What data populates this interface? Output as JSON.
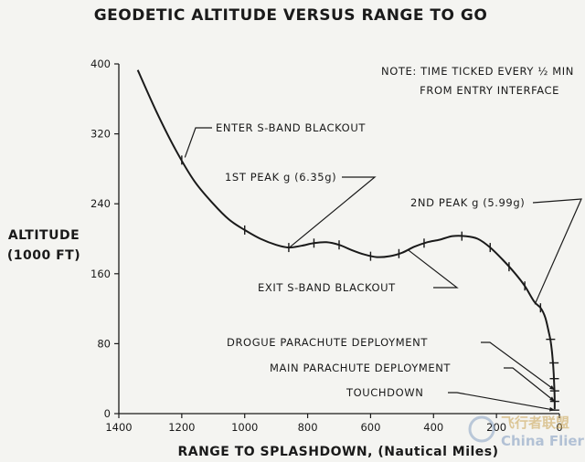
{
  "chart_data": {
    "type": "line",
    "title": "GEODETIC ALTITUDE VERSUS RANGE TO GO",
    "xlabel": "RANGE TO SPLASHDOWN, (Nautical Miles)",
    "ylabel_line1": "ALTITUDE",
    "ylabel_line2": "(1000 FT)",
    "xlim": [
      1400,
      0
    ],
    "ylim": [
      0,
      400
    ],
    "x_ticks": [
      1400,
      1200,
      1000,
      800,
      600,
      400,
      200,
      0
    ],
    "y_ticks": [
      0,
      80,
      160,
      240,
      320,
      400
    ],
    "note_line1": "NOTE: TIME TICKED EVERY ½ MIN",
    "note_line2": "FROM ENTRY INTERFACE",
    "series": [
      {
        "points": [
          [
            1340,
            393
          ],
          [
            1280,
            345
          ],
          [
            1220,
            302
          ],
          [
            1160,
            266
          ],
          [
            1100,
            240
          ],
          [
            1050,
            222
          ],
          [
            1000,
            210
          ],
          [
            950,
            200
          ],
          [
            900,
            193
          ],
          [
            860,
            190
          ],
          [
            820,
            192
          ],
          [
            780,
            195
          ],
          [
            740,
            196
          ],
          [
            700,
            193
          ],
          [
            660,
            187
          ],
          [
            620,
            182
          ],
          [
            580,
            179
          ],
          [
            540,
            180
          ],
          [
            500,
            184
          ],
          [
            460,
            191
          ],
          [
            420,
            196
          ],
          [
            380,
            199
          ],
          [
            340,
            203
          ],
          [
            300,
            203
          ],
          [
            260,
            200
          ],
          [
            220,
            190
          ],
          [
            180,
            176
          ],
          [
            140,
            160
          ],
          [
            110,
            146
          ],
          [
            80,
            128
          ],
          [
            60,
            121
          ],
          [
            45,
            110
          ],
          [
            35,
            95
          ],
          [
            28,
            83
          ],
          [
            22,
            65
          ],
          [
            18,
            45
          ],
          [
            16,
            28
          ],
          [
            15,
            15
          ],
          [
            15,
            5
          ]
        ]
      }
    ],
    "time_ticks": [
      [
        1200,
        290
      ],
      [
        1000,
        210
      ],
      [
        860,
        190
      ],
      [
        780,
        195
      ],
      [
        700,
        193
      ],
      [
        600,
        180
      ],
      [
        510,
        183
      ],
      [
        430,
        195
      ],
      [
        310,
        203
      ],
      [
        220,
        190
      ],
      [
        160,
        168
      ],
      [
        110,
        146
      ],
      [
        60,
        121
      ],
      [
        28,
        85
      ],
      [
        17,
        58
      ],
      [
        16,
        40
      ],
      [
        15,
        26
      ],
      [
        15,
        14
      ],
      [
        15,
        4
      ]
    ],
    "annotations": [
      {
        "text": "ENTER S-BAND BLACKOUT",
        "x": 1190,
        "y": 293
      },
      {
        "text": "1ST PEAK g (6.35g)",
        "x": 858,
        "y": 190
      },
      {
        "text": "2ND PEAK g (5.99g)",
        "x": 78,
        "y": 125
      },
      {
        "text": "EXIT S-BAND BLACKOUT",
        "x": 480,
        "y": 187
      },
      {
        "text": "DROGUE PARACHUTE DEPLOYMENT",
        "x": 15,
        "y": 27
      },
      {
        "text": "MAIN PARACHUTE DEPLOYMENT",
        "x": 15,
        "y": 14
      },
      {
        "text": "TOUCHDOWN",
        "x": 15,
        "y": 4
      }
    ]
  },
  "watermark": {
    "cn_text": "飞行者联盟",
    "en_text": "China Flier"
  }
}
